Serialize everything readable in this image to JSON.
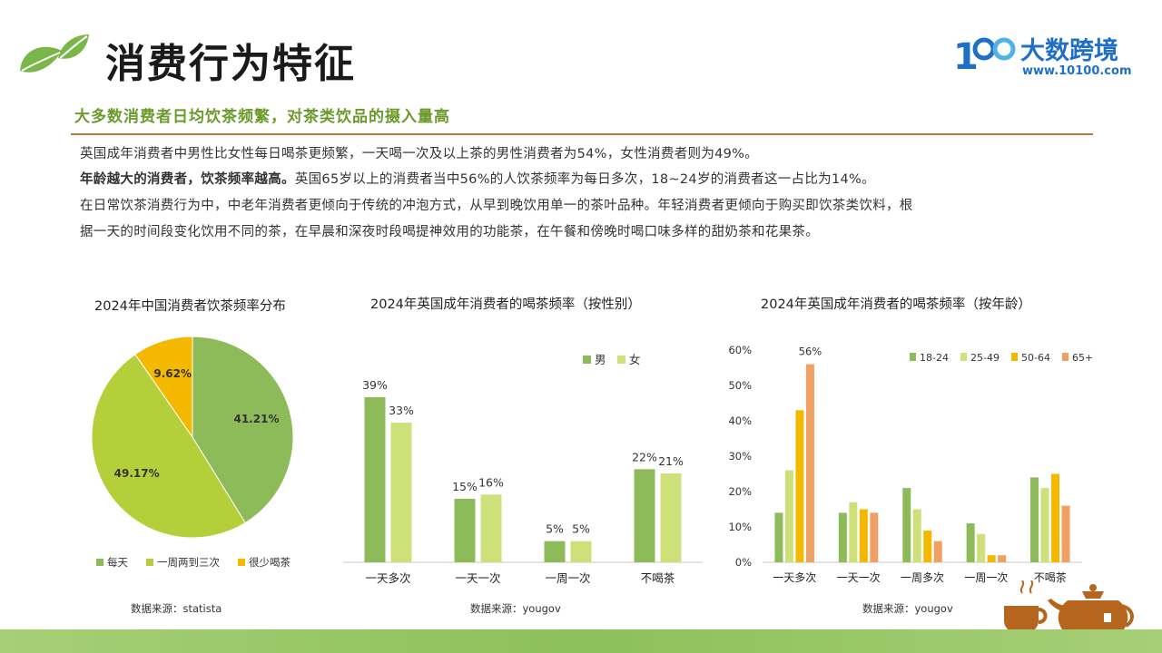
{
  "header": {
    "title": "消费行为特征",
    "subtitle": "大多数消费者日均饮茶频繁，对茶类饮品的摄入量高",
    "logo_text": "大数跨境",
    "logo_url": "www.10100.com",
    "logo_mark": "1"
  },
  "paragraphs": {
    "p1": "英国成年消费者中男性比女性每日喝茶更频繁，一天喝一次及以上茶的男性消费者为54%，女性消费者则为49%。",
    "p2_bold": "年龄越大的消费者，饮茶频率越高。",
    "p2_rest": "英国65岁以上的消费者当中56%的人饮茶频率为每日多次，18~24岁的消费者这一占比为14%。",
    "p3_line1": "在日常饮茶消费行为中，中老年消费者更倾向于传统的冲泡方式，从早到晚饮用单一的茶叶品种。年轻消费者更倾向于购买即饮茶类饮料，根",
    "p3_line2": "据一天的时间段变化饮用不同的茶，在早晨和深夜时段喝提神效用的功能茶，在午餐和傍晚时喝口味多样的甜奶茶和花果茶。"
  },
  "chart_data": [
    {
      "type": "pie",
      "title": "2024年中国消费者饮茶频率分布",
      "source": "数据来源：statista",
      "categories": [
        "每天",
        "一周两到三次",
        "很少喝茶"
      ],
      "values": [
        41.21,
        49.17,
        9.62
      ],
      "labels": [
        "41.21%",
        "49.17%",
        "9.62%"
      ],
      "colors": [
        "#8dbb5a",
        "#b5cf3a",
        "#f5b800"
      ],
      "legend": "bottom"
    },
    {
      "type": "bar",
      "title": "2024年英国成年消费者的喝茶频率（按性别）",
      "source": "数据来源：yougov",
      "categories": [
        "一天多次",
        "一天一次",
        "一周一次",
        "不喝茶"
      ],
      "series": [
        {
          "name": "男",
          "values": [
            39,
            15,
            5,
            22
          ],
          "labels": [
            "39%",
            "15%",
            "5%",
            "22%"
          ],
          "color": "#8dbb5a"
        },
        {
          "name": "女",
          "values": [
            33,
            16,
            5,
            21
          ],
          "labels": [
            "33%",
            "16%",
            "5%",
            "21%"
          ],
          "color": "#cde07a"
        }
      ],
      "ylim": [
        0,
        45
      ],
      "legend": "top-right",
      "grid": false
    },
    {
      "type": "bar",
      "title": "2024年英国成年消费者的喝茶频率（按年龄）",
      "source": "数据来源：yougov",
      "categories": [
        "一天多次",
        "一天一次",
        "一周多次",
        "一周一次",
        "不喝茶"
      ],
      "series": [
        {
          "name": "18-24",
          "values": [
            14,
            14,
            21,
            11,
            24
          ],
          "color": "#8dbb5a"
        },
        {
          "name": "25-49",
          "values": [
            26,
            17,
            15,
            8,
            21
          ],
          "color": "#cde07a"
        },
        {
          "name": "50-64",
          "values": [
            43,
            15,
            9,
            2,
            25
          ],
          "color": "#f5b800"
        },
        {
          "name": "65+",
          "values": [
            56,
            14,
            6,
            2,
            16
          ],
          "color": "#f0a063"
        }
      ],
      "annotation": "56%",
      "yticks": [
        "0%",
        "10%",
        "20%",
        "30%",
        "40%",
        "50%",
        "60%"
      ],
      "ylim": [
        0,
        60
      ],
      "legend": "top-right",
      "grid": false
    }
  ]
}
